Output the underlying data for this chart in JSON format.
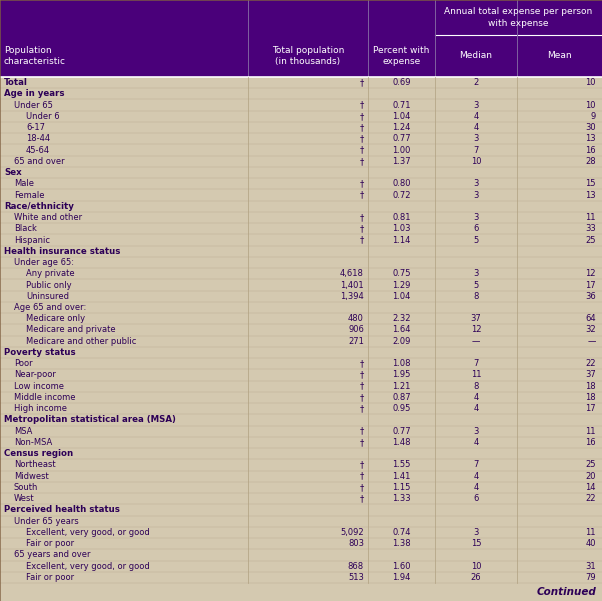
{
  "header_bg": "#4a007a",
  "header_text": "#FFFFFF",
  "body_bg": "#d4c9b0",
  "body_text": "#2d0057",
  "super_header": "Annual total expense per person\nwith expense",
  "rows": [
    {
      "label": "Total",
      "indent": 0,
      "bold": true,
      "pop": "†",
      "pct": "0.69",
      "med": "2",
      "mean": "10"
    },
    {
      "label": "Age in years",
      "indent": 0,
      "bold": true,
      "pop": "",
      "pct": "",
      "med": "",
      "mean": ""
    },
    {
      "label": "Under 65",
      "indent": 1,
      "bold": false,
      "pop": "†",
      "pct": "0.71",
      "med": "3",
      "mean": "10"
    },
    {
      "label": "Under 6",
      "indent": 2,
      "bold": false,
      "pop": "†",
      "pct": "1.04",
      "med": "4",
      "mean": "9"
    },
    {
      "label": "6-17",
      "indent": 2,
      "bold": false,
      "pop": "†",
      "pct": "1.24",
      "med": "4",
      "mean": "30"
    },
    {
      "label": "18-44",
      "indent": 2,
      "bold": false,
      "pop": "†",
      "pct": "0.77",
      "med": "3",
      "mean": "13"
    },
    {
      "label": "45-64",
      "indent": 2,
      "bold": false,
      "pop": "†",
      "pct": "1.00",
      "med": "7",
      "mean": "16"
    },
    {
      "label": "65 and over",
      "indent": 1,
      "bold": false,
      "pop": "†",
      "pct": "1.37",
      "med": "10",
      "mean": "28"
    },
    {
      "label": "Sex",
      "indent": 0,
      "bold": true,
      "pop": "",
      "pct": "",
      "med": "",
      "mean": ""
    },
    {
      "label": "Male",
      "indent": 1,
      "bold": false,
      "pop": "†",
      "pct": "0.80",
      "med": "3",
      "mean": "15"
    },
    {
      "label": "Female",
      "indent": 1,
      "bold": false,
      "pop": "†",
      "pct": "0.72",
      "med": "3",
      "mean": "13"
    },
    {
      "label": "Race/ethnicity",
      "indent": 0,
      "bold": true,
      "pop": "",
      "pct": "",
      "med": "",
      "mean": ""
    },
    {
      "label": "White and other",
      "indent": 1,
      "bold": false,
      "pop": "†",
      "pct": "0.81",
      "med": "3",
      "mean": "11"
    },
    {
      "label": "Black",
      "indent": 1,
      "bold": false,
      "pop": "†",
      "pct": "1.03",
      "med": "6",
      "mean": "33"
    },
    {
      "label": "Hispanic",
      "indent": 1,
      "bold": false,
      "pop": "†",
      "pct": "1.14",
      "med": "5",
      "mean": "25"
    },
    {
      "label": "Health insurance status",
      "indent": 0,
      "bold": true,
      "pop": "",
      "pct": "",
      "med": "",
      "mean": ""
    },
    {
      "label": "Under age 65:",
      "indent": 1,
      "bold": false,
      "pop": "",
      "pct": "",
      "med": "",
      "mean": ""
    },
    {
      "label": "Any private",
      "indent": 2,
      "bold": false,
      "pop": "4,618",
      "pct": "0.75",
      "med": "3",
      "mean": "12"
    },
    {
      "label": "Public only",
      "indent": 2,
      "bold": false,
      "pop": "1,401",
      "pct": "1.29",
      "med": "5",
      "mean": "17"
    },
    {
      "label": "Uninsured",
      "indent": 2,
      "bold": false,
      "pop": "1,394",
      "pct": "1.04",
      "med": "8",
      "mean": "36"
    },
    {
      "label": "Age 65 and over:",
      "indent": 1,
      "bold": false,
      "pop": "",
      "pct": "",
      "med": "",
      "mean": ""
    },
    {
      "label": "Medicare only",
      "indent": 2,
      "bold": false,
      "pop": "480",
      "pct": "2.32",
      "med": "37",
      "mean": "64"
    },
    {
      "label": "Medicare and private",
      "indent": 2,
      "bold": false,
      "pop": "906",
      "pct": "1.64",
      "med": "12",
      "mean": "32"
    },
    {
      "label": "Medicare and other public",
      "indent": 2,
      "bold": false,
      "pop": "271",
      "pct": "2.09",
      "med": "—",
      "mean": "—"
    },
    {
      "label": "Poverty status",
      "indent": 0,
      "bold": true,
      "pop": "",
      "pct": "",
      "med": "",
      "mean": ""
    },
    {
      "label": "Poor",
      "indent": 1,
      "bold": false,
      "pop": "†",
      "pct": "1.08",
      "med": "7",
      "mean": "22"
    },
    {
      "label": "Near-poor",
      "indent": 1,
      "bold": false,
      "pop": "†",
      "pct": "1.95",
      "med": "11",
      "mean": "37"
    },
    {
      "label": "Low income",
      "indent": 1,
      "bold": false,
      "pop": "†",
      "pct": "1.21",
      "med": "8",
      "mean": "18"
    },
    {
      "label": "Middle income",
      "indent": 1,
      "bold": false,
      "pop": "†",
      "pct": "0.87",
      "med": "4",
      "mean": "18"
    },
    {
      "label": "High income",
      "indent": 1,
      "bold": false,
      "pop": "†",
      "pct": "0.95",
      "med": "4",
      "mean": "17"
    },
    {
      "label": "Metropolitan statistical area (MSA)",
      "indent": 0,
      "bold": true,
      "pop": "",
      "pct": "",
      "med": "",
      "mean": ""
    },
    {
      "label": "MSA",
      "indent": 1,
      "bold": false,
      "pop": "†",
      "pct": "0.77",
      "med": "3",
      "mean": "11"
    },
    {
      "label": "Non-MSA",
      "indent": 1,
      "bold": false,
      "pop": "†",
      "pct": "1.48",
      "med": "4",
      "mean": "16"
    },
    {
      "label": "Census region",
      "indent": 0,
      "bold": true,
      "pop": "",
      "pct": "",
      "med": "",
      "mean": ""
    },
    {
      "label": "Northeast",
      "indent": 1,
      "bold": false,
      "pop": "†",
      "pct": "1.55",
      "med": "7",
      "mean": "25"
    },
    {
      "label": "Midwest",
      "indent": 1,
      "bold": false,
      "pop": "†",
      "pct": "1.41",
      "med": "4",
      "mean": "20"
    },
    {
      "label": "South",
      "indent": 1,
      "bold": false,
      "pop": "†",
      "pct": "1.15",
      "med": "4",
      "mean": "14"
    },
    {
      "label": "West",
      "indent": 1,
      "bold": false,
      "pop": "†",
      "pct": "1.33",
      "med": "6",
      "mean": "22"
    },
    {
      "label": "Perceived health status",
      "indent": 0,
      "bold": true,
      "pop": "",
      "pct": "",
      "med": "",
      "mean": ""
    },
    {
      "label": "Under 65 years",
      "indent": 1,
      "bold": false,
      "pop": "",
      "pct": "",
      "med": "",
      "mean": ""
    },
    {
      "label": "Excellent, very good, or good",
      "indent": 2,
      "bold": false,
      "pop": "5,092",
      "pct": "0.74",
      "med": "3",
      "mean": "11"
    },
    {
      "label": "Fair or poor",
      "indent": 2,
      "bold": false,
      "pop": "803",
      "pct": "1.38",
      "med": "15",
      "mean": "40"
    },
    {
      "label": "65 years and over",
      "indent": 1,
      "bold": false,
      "pop": "",
      "pct": "",
      "med": "",
      "mean": ""
    },
    {
      "label": "Excellent, very good, or good",
      "indent": 2,
      "bold": false,
      "pop": "868",
      "pct": "1.60",
      "med": "10",
      "mean": "31"
    },
    {
      "label": "Fair or poor",
      "indent": 2,
      "bold": false,
      "pop": "513",
      "pct": "1.94",
      "med": "26",
      "mean": "79"
    }
  ]
}
